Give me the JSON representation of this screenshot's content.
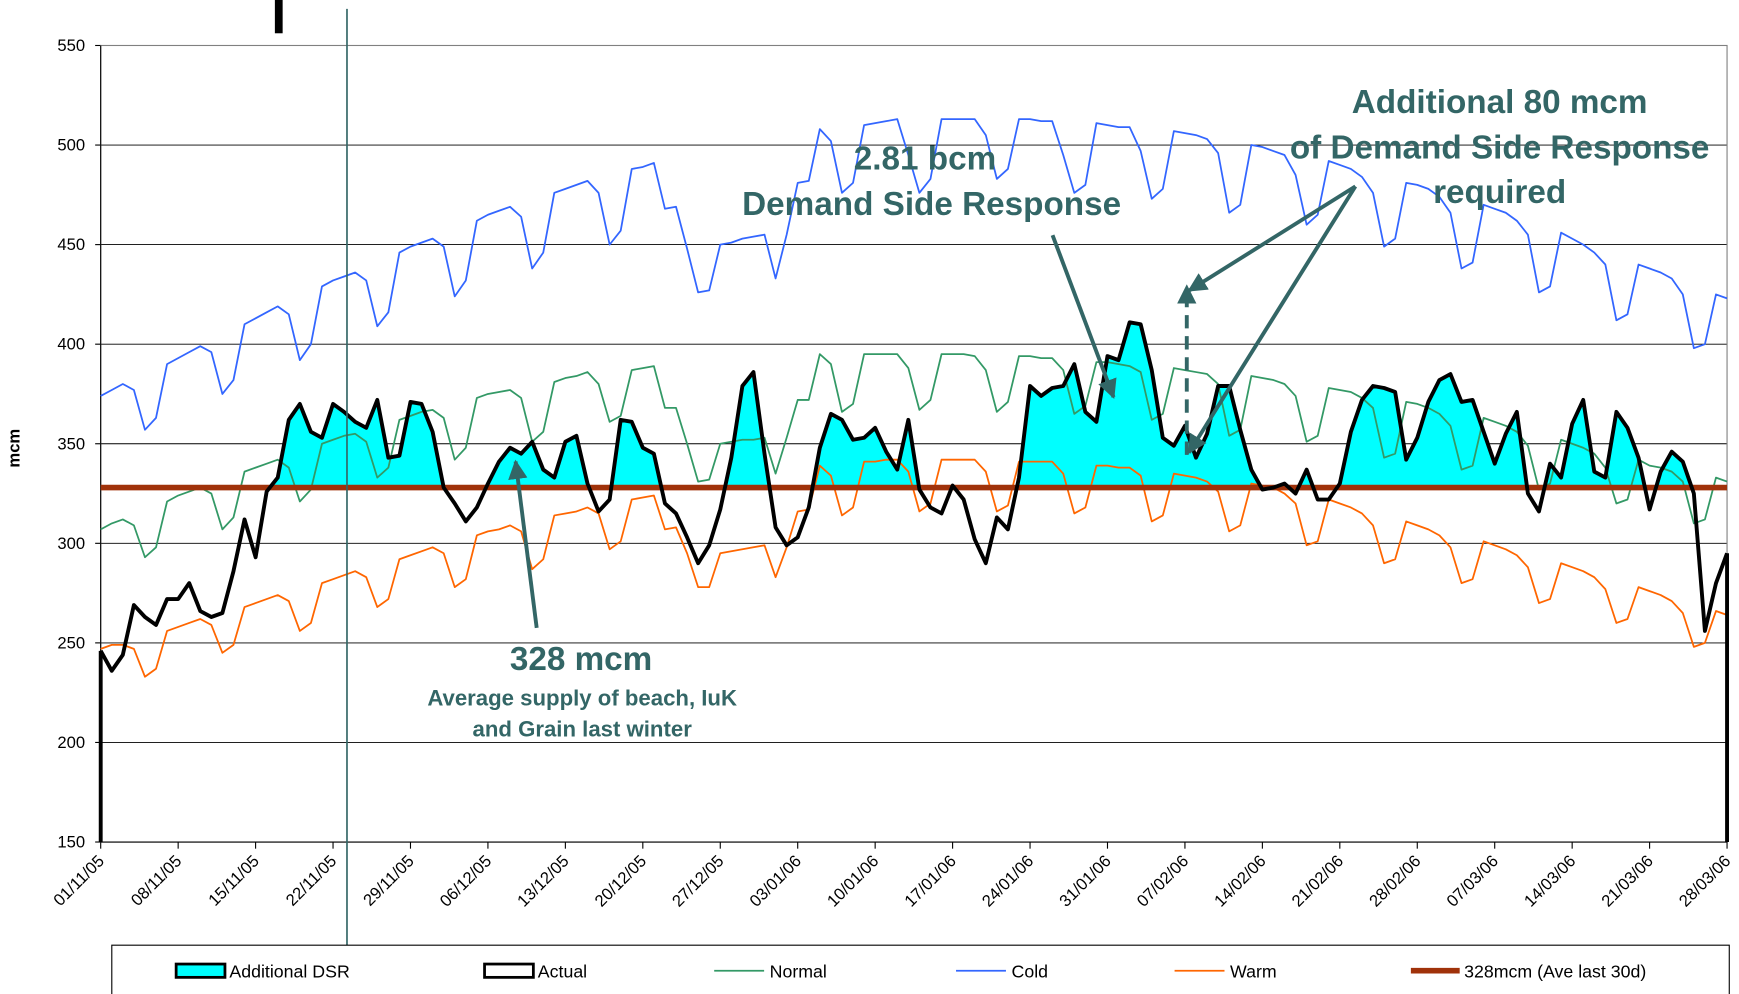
{
  "chart_data": {
    "type": "line",
    "ylabel": "mcm",
    "ylim": [
      150,
      550
    ],
    "yticks": [
      150,
      200,
      250,
      300,
      350,
      400,
      450,
      500,
      550
    ],
    "grid": true,
    "legend": "bottom",
    "categories": [
      "01/11/05",
      null,
      null,
      null,
      null,
      null,
      null,
      "08/11/05",
      null,
      null,
      null,
      null,
      null,
      null,
      "15/11/05",
      null,
      null,
      null,
      null,
      null,
      null,
      "22/11/05",
      null,
      null,
      null,
      null,
      null,
      null,
      "29/11/05",
      null,
      null,
      null,
      null,
      null,
      null,
      "06/12/05",
      null,
      null,
      null,
      null,
      null,
      null,
      "13/12/05",
      null,
      null,
      null,
      null,
      null,
      null,
      "20/12/05",
      null,
      null,
      null,
      null,
      null,
      null,
      "27/12/05",
      null,
      null,
      null,
      null,
      null,
      null,
      "03/01/06",
      null,
      null,
      null,
      null,
      null,
      null,
      "10/01/06",
      null,
      null,
      null,
      null,
      null,
      null,
      "17/01/06",
      null,
      null,
      null,
      null,
      null,
      null,
      "24/01/06",
      null,
      null,
      null,
      null,
      null,
      null,
      "31/01/06",
      null,
      null,
      null,
      null,
      null,
      null,
      "07/02/06",
      null,
      null,
      null,
      null,
      null,
      null,
      "14/02/06",
      null,
      null,
      null,
      null,
      null,
      null,
      "21/02/06",
      null,
      null,
      null,
      null,
      null,
      null,
      "28/02/06",
      null,
      null,
      null,
      null,
      null,
      null,
      "07/03/06",
      null,
      null,
      null,
      null,
      null,
      null,
      "14/03/06",
      null,
      null,
      null,
      null,
      null,
      null,
      "21/03/06",
      null,
      null,
      null,
      null,
      null,
      null,
      "28/03/06"
    ],
    "dsr_area": {
      "name": "Additional DSR",
      "color": "#00ffff"
    },
    "series": [
      {
        "name": "Actual",
        "color": "#000000",
        "width": 3.5,
        "values": [
          246,
          236,
          244,
          269,
          263,
          259,
          272,
          272,
          280,
          266,
          263,
          265,
          286,
          312,
          293,
          326,
          333,
          362,
          370,
          356,
          353,
          370,
          366,
          361,
          358,
          372,
          343,
          344,
          371,
          370,
          356,
          328,
          320,
          311,
          318,
          330,
          341,
          348,
          345,
          351,
          337,
          333,
          351,
          354,
          330,
          316,
          322,
          362,
          361,
          348,
          345,
          320,
          315,
          303,
          290,
          299,
          317,
          343,
          379,
          386,
          345,
          308,
          299,
          303,
          318,
          348,
          365,
          362,
          352,
          353,
          358,
          346,
          337,
          362,
          327,
          318,
          315,
          329,
          322,
          302,
          290,
          313,
          307,
          333,
          379,
          374,
          378,
          379,
          390,
          366,
          361,
          394,
          392,
          411,
          410,
          387,
          353,
          349,
          359,
          343,
          355,
          379,
          379,
          357,
          337,
          327,
          328,
          330,
          325,
          337,
          322,
          322,
          330,
          356,
          372,
          379,
          378,
          376,
          342,
          353,
          371,
          382,
          385,
          371,
          372,
          356,
          340,
          355,
          366,
          325,
          316,
          340,
          333,
          360,
          372,
          336,
          333,
          366,
          358,
          343,
          317,
          336,
          346,
          341,
          325,
          256,
          280,
          295
        ]
      },
      {
        "name": "Normal",
        "color": "#339966",
        "width": 1.6,
        "values": [
          307,
          310,
          312,
          309,
          293,
          298,
          321,
          324,
          326,
          328,
          325,
          307,
          313,
          336,
          338,
          340,
          342,
          338,
          321,
          327,
          350,
          352,
          354,
          355,
          351,
          333,
          338,
          362,
          364,
          366,
          367,
          363,
          342,
          348,
          373,
          375,
          376,
          377,
          373,
          351,
          356,
          381,
          383,
          384,
          386,
          380,
          361,
          364,
          387,
          388,
          389,
          368,
          368,
          350,
          331,
          332,
          350,
          351,
          352,
          352,
          353,
          335,
          353,
          372,
          372,
          395,
          390,
          366,
          370,
          395,
          395,
          395,
          395,
          388,
          367,
          372,
          395,
          395,
          395,
          394,
          387,
          366,
          371,
          394,
          394,
          393,
          393,
          387,
          365,
          369,
          391,
          391,
          390,
          389,
          386,
          362,
          365,
          388,
          387,
          386,
          385,
          380,
          354,
          357,
          384,
          383,
          382,
          380,
          374,
          351,
          354,
          378,
          377,
          376,
          373,
          368,
          343,
          345,
          371,
          370,
          368,
          365,
          359,
          337,
          339,
          363,
          361,
          359,
          356,
          349,
          327,
          330,
          352,
          350,
          348,
          345,
          338,
          320,
          322,
          342,
          339,
          338,
          336,
          331,
          310,
          312,
          333,
          331
        ]
      },
      {
        "name": "Cold",
        "color": "#3366ff",
        "width": 1.6,
        "values": [
          374,
          377,
          380,
          377,
          357,
          363,
          390,
          393,
          396,
          399,
          396,
          375,
          382,
          410,
          413,
          416,
          419,
          415,
          392,
          400,
          429,
          432,
          434,
          436,
          432,
          409,
          416,
          446,
          449,
          451,
          453,
          449,
          424,
          432,
          462,
          465,
          467,
          469,
          464,
          438,
          446,
          476,
          478,
          480,
          482,
          476,
          450,
          457,
          488,
          489,
          491,
          468,
          469,
          448,
          426,
          427,
          450,
          451,
          453,
          454,
          455,
          433,
          455,
          481,
          482,
          508,
          502,
          476,
          481,
          510,
          511,
          512,
          513,
          495,
          476,
          483,
          513,
          513,
          513,
          513,
          505,
          483,
          488,
          513,
          513,
          512,
          512,
          495,
          476,
          480,
          511,
          510,
          509,
          509,
          497,
          473,
          478,
          507,
          506,
          505,
          503,
          496,
          466,
          470,
          500,
          499,
          497,
          495,
          485,
          460,
          465,
          492,
          490,
          488,
          484,
          476,
          449,
          453,
          481,
          480,
          478,
          474,
          466,
          438,
          441,
          470,
          468,
          466,
          462,
          455,
          426,
          429,
          456,
          453,
          450,
          446,
          440,
          412,
          415,
          440,
          438,
          436,
          433,
          425,
          398,
          400,
          425,
          423
        ]
      },
      {
        "name": "Warm",
        "color": "#ff6600",
        "width": 1.6,
        "values": [
          247,
          249,
          249,
          247,
          233,
          237,
          256,
          258,
          260,
          262,
          259,
          245,
          249,
          268,
          270,
          272,
          274,
          271,
          256,
          260,
          280,
          282,
          284,
          286,
          283,
          268,
          272,
          292,
          294,
          296,
          298,
          295,
          278,
          282,
          304,
          306,
          307,
          309,
          306,
          287,
          292,
          314,
          315,
          316,
          318,
          315,
          297,
          301,
          322,
          323,
          324,
          307,
          308,
          295,
          278,
          278,
          295,
          296,
          297,
          298,
          299,
          283,
          298,
          316,
          317,
          339,
          334,
          314,
          318,
          341,
          341,
          342,
          342,
          336,
          316,
          320,
          342,
          342,
          342,
          342,
          336,
          316,
          319,
          341,
          341,
          341,
          341,
          335,
          315,
          318,
          339,
          339,
          338,
          338,
          334,
          311,
          314,
          335,
          334,
          333,
          331,
          326,
          306,
          309,
          330,
          329,
          328,
          325,
          320,
          299,
          301,
          322,
          320,
          318,
          315,
          309,
          290,
          292,
          311,
          309,
          307,
          304,
          298,
          280,
          282,
          301,
          299,
          297,
          294,
          288,
          270,
          272,
          290,
          288,
          286,
          283,
          277,
          260,
          262,
          278,
          276,
          274,
          271,
          265,
          248,
          250,
          266,
          264
        ]
      }
    ],
    "reference_line": {
      "name": "328mcm (Ave last 30d)",
      "color": "#a0320a",
      "value": 328
    },
    "annotations": [
      "2.81 bcm",
      "Demand Side Response",
      "Additional 80 mcm",
      "of Demand Side Response",
      "required",
      "328 mcm",
      "Average supply of beach, IuK",
      "and Grain last winter"
    ]
  }
}
